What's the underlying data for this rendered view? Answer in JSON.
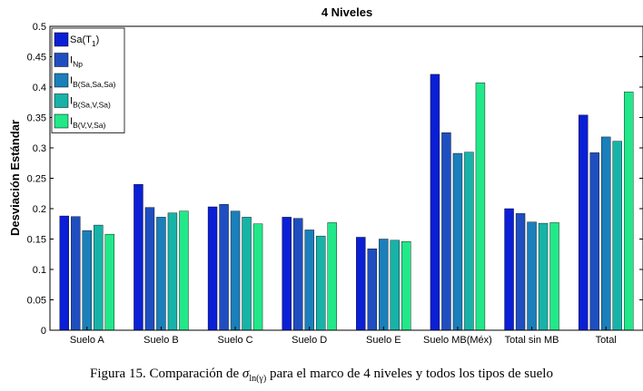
{
  "chart_data": {
    "type": "bar",
    "title": "4 Niveles",
    "xlabel": "",
    "ylabel": "Desviación Estándar",
    "ylim": [
      0,
      0.5
    ],
    "yticks": [
      "0",
      "0.05",
      "0.1",
      "0.15",
      "0.2",
      "0.25",
      "0.3",
      "0.35",
      "0.4",
      "0.45",
      "0.5"
    ],
    "grid": false,
    "legend_position": "top-left",
    "categories": [
      "Suelo A",
      "Suelo B",
      "Suelo C",
      "Suelo D",
      "Suelo E",
      "Suelo MB(Méx)",
      "Total sin MB",
      "Total"
    ],
    "series": [
      {
        "name": "Sa(T1)",
        "main": "Sa(T",
        "sub": "1",
        "tail": ")",
        "color": "#0a1fd6",
        "values": [
          0.188,
          0.24,
          0.203,
          0.186,
          0.153,
          0.421,
          0.2,
          0.354
        ]
      },
      {
        "name": "I_Np",
        "main": "I",
        "sub": "Np",
        "tail": "",
        "color": "#1f4ec0",
        "values": [
          0.187,
          0.202,
          0.207,
          0.184,
          0.134,
          0.325,
          0.192,
          0.292
        ]
      },
      {
        "name": "I_B(Sa,Sa,Sa)",
        "main": "I",
        "sub": "B(Sa,Sa,Sa)",
        "tail": "",
        "color": "#1a7fba",
        "values": [
          0.164,
          0.186,
          0.196,
          0.165,
          0.15,
          0.291,
          0.178,
          0.318
        ]
      },
      {
        "name": "I_B(Sa,V,Sa)",
        "main": "I",
        "sub": "B(Sa,V,Sa)",
        "tail": "",
        "color": "#17b3a8",
        "values": [
          0.173,
          0.193,
          0.186,
          0.155,
          0.148,
          0.293,
          0.176,
          0.311
        ]
      },
      {
        "name": "I_B(V,V,Sa)",
        "main": "I",
        "sub": "B(V,V,Sa)",
        "tail": "",
        "color": "#22e88a",
        "values": [
          0.158,
          0.196,
          0.175,
          0.177,
          0.146,
          0.407,
          0.177,
          0.392
        ]
      }
    ]
  },
  "caption": {
    "prefix": "Figura 15. Comparación de",
    "symbol": "σ",
    "symbol_sub": "ln(γ)",
    "suffix": "para el marco de 4 niveles y todos los tipos de suelo"
  }
}
